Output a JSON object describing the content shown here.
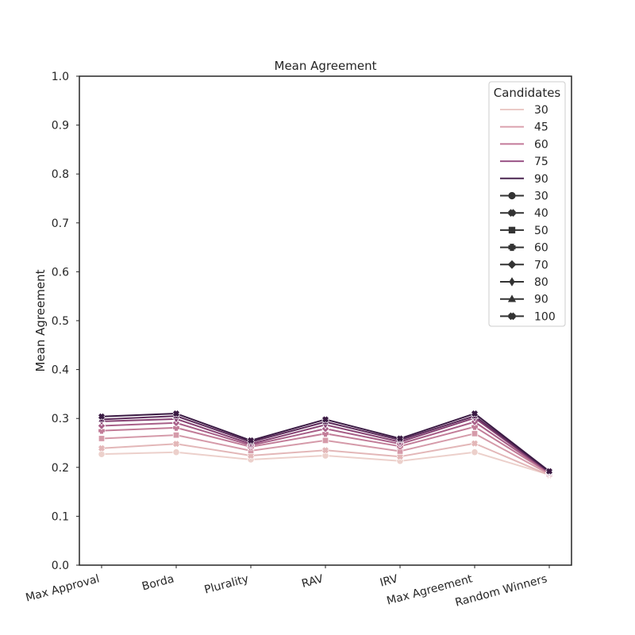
{
  "chart_data": {
    "type": "line",
    "title": "Mean Agreement",
    "xlabel": "",
    "ylabel": "Mean Agreement",
    "ylim": [
      0.0,
      1.0
    ],
    "yticks": [
      "0.0",
      "0.1",
      "0.2",
      "0.3",
      "0.4",
      "0.5",
      "0.6",
      "0.7",
      "0.8",
      "0.9",
      "1.0"
    ],
    "categories": [
      "Max Approval",
      "Borda",
      "Plurality",
      "RAV",
      "IRV",
      "Max Agreement",
      "Random Winners"
    ],
    "grid": false,
    "legend": {
      "title": "Candidates",
      "placement": "top-right",
      "hue_entries": [
        {
          "label": "30",
          "color": "#ebcac7"
        },
        {
          "label": "45",
          "color": "#dca4b0"
        },
        {
          "label": "60",
          "color": "#c47a9a"
        },
        {
          "label": "75",
          "color": "#9a5386"
        },
        {
          "label": "90",
          "color": "#4a2550"
        }
      ],
      "style_entries": [
        {
          "label": "30",
          "marker": "circle"
        },
        {
          "label": "40",
          "marker": "x"
        },
        {
          "label": "50",
          "marker": "square"
        },
        {
          "label": "60",
          "marker": "plus"
        },
        {
          "label": "70",
          "marker": "diamond"
        },
        {
          "label": "80",
          "marker": "thin-diamond"
        },
        {
          "label": "90",
          "marker": "triangle"
        },
        {
          "label": "100",
          "marker": "x"
        }
      ]
    },
    "series": [
      {
        "color": "#ecd0cb",
        "marker": "circle",
        "values": [
          0.227,
          0.231,
          0.216,
          0.224,
          0.213,
          0.231,
          0.185
        ]
      },
      {
        "color": "#e3b7b8",
        "marker": "x",
        "values": [
          0.239,
          0.248,
          0.224,
          0.235,
          0.222,
          0.249,
          0.184
        ]
      },
      {
        "color": "#d59aa9",
        "marker": "square",
        "values": [
          0.259,
          0.266,
          0.234,
          0.255,
          0.233,
          0.269,
          0.186
        ]
      },
      {
        "color": "#c27c98",
        "marker": "plus",
        "values": [
          0.275,
          0.281,
          0.242,
          0.269,
          0.243,
          0.283,
          0.188
        ]
      },
      {
        "color": "#a85f88",
        "marker": "diamond",
        "values": [
          0.285,
          0.291,
          0.245,
          0.279,
          0.248,
          0.293,
          0.189
        ]
      },
      {
        "color": "#864273",
        "marker": "thin-diamond",
        "values": [
          0.294,
          0.299,
          0.248,
          0.287,
          0.252,
          0.301,
          0.19
        ]
      },
      {
        "color": "#5d2b5b",
        "marker": "triangle",
        "values": [
          0.298,
          0.305,
          0.252,
          0.293,
          0.256,
          0.305,
          0.191
        ]
      },
      {
        "color": "#3a1a43",
        "marker": "x",
        "values": [
          0.304,
          0.31,
          0.255,
          0.298,
          0.259,
          0.31,
          0.192
        ]
      }
    ]
  }
}
